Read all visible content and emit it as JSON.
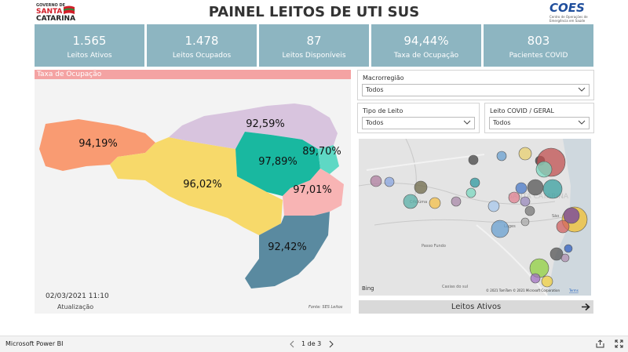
{
  "header": {
    "logo_left": {
      "line1": "GOVERNO DE",
      "line2": "SANTA",
      "line3": "CATARINA"
    },
    "title": "PAINEL LEITOS DE UTI SUS",
    "logo_right": {
      "name": "COES",
      "subtitle": "Centro de Operações de Emergência em Saúde"
    }
  },
  "kpis": [
    {
      "value": "1.565",
      "label": "Leitos Ativos"
    },
    {
      "value": "1.478",
      "label": "Leitos Ocupados"
    },
    {
      "value": "87",
      "label": "Leitos Disponíveis"
    },
    {
      "value": "94,44%",
      "label": "Taxa de Ocupação"
    },
    {
      "value": "803",
      "label": "Pacientes COVID"
    }
  ],
  "occupancy_map": {
    "title": "Taxa de Ocupação",
    "regions": [
      "94,19%",
      "96,02%",
      "92,59%",
      "97,89%",
      "89,70%",
      "97,01%",
      "92,42%"
    ],
    "updated": "02/03/2021 11:10",
    "updated_label": "Atualização",
    "source": "Fonte: SES Leitos"
  },
  "filters": [
    {
      "label": "Macrorregião",
      "value": "Todos"
    },
    {
      "label": "Tipo de Leito",
      "value": "Todos"
    },
    {
      "label": "Leito COVID / GERAL",
      "value": "Todos"
    }
  ],
  "bubble_map": {
    "places": [
      "SANTA CATARINA",
      "Criciúma",
      "Passo Fundo",
      "Caxias do sul",
      "Lages",
      "São"
    ],
    "provider": "Bing",
    "copyright": "© 2021 TomTom © 2021 Microsoft Corporation",
    "terms": "Terms"
  },
  "button": {
    "label": "Leitos Ativos"
  },
  "footer": {
    "app": "Microsoft Power BI",
    "page": "1 de 3"
  }
}
